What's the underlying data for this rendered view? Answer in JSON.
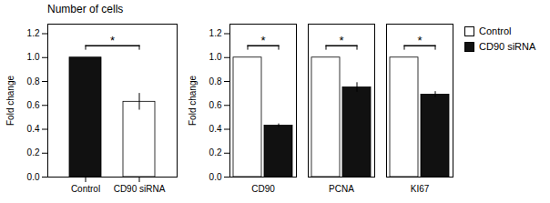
{
  "chart_data": [
    {
      "type": "bar",
      "title": "Number of cells",
      "categories": [
        "Control",
        "CD90 siRNA"
      ],
      "values": [
        1.0,
        0.63
      ],
      "errors": [
        0.0,
        0.07
      ],
      "colors": [
        "#111111",
        "#ffffff"
      ],
      "ylabel": "Fold change",
      "ylim": [
        0,
        1.28
      ],
      "yticks": [
        {
          "value": 0,
          "label": "0.0"
        },
        0.2,
        0.4,
        0.6,
        0.8,
        {
          "value": 1.0,
          "label": "1.0"
        },
        1.2
      ],
      "annotations": [
        {
          "text": "*",
          "y": 1.1,
          "between": [
            "Control",
            "CD90 siRNA"
          ]
        }
      ]
    },
    {
      "type": "bar",
      "categories": [
        "CD90",
        "PCNA",
        "KI67"
      ],
      "series": [
        {
          "name": "Control",
          "color": "#ffffff",
          "values": [
            1.0,
            1.0,
            1.0
          ],
          "errors": [
            0.0,
            0.0,
            0.0
          ]
        },
        {
          "name": "CD90 siRNA",
          "color": "#111111",
          "values": [
            0.43,
            0.75,
            0.69
          ],
          "errors": [
            0.015,
            0.04,
            0.025
          ]
        }
      ],
      "ylabel": "Fold change",
      "ylim": [
        0,
        1.28
      ],
      "yticks": [
        {
          "value": 0,
          "label": "0.0"
        },
        0.2,
        0.4,
        0.6,
        0.8,
        {
          "value": 1.0,
          "label": "1.0"
        },
        1.2
      ],
      "legend": "upper right",
      "annotations": [
        {
          "text": "*",
          "y": 1.1,
          "category": "CD90",
          "between": [
            "Control",
            "CD90 siRNA"
          ]
        },
        {
          "text": "*",
          "y": 1.1,
          "category": "PCNA",
          "between": [
            "Control",
            "CD90 siRNA"
          ]
        },
        {
          "text": "*",
          "y": 1.1,
          "category": "KI67",
          "between": [
            "Control",
            "CD90 siRNA"
          ]
        }
      ]
    }
  ]
}
